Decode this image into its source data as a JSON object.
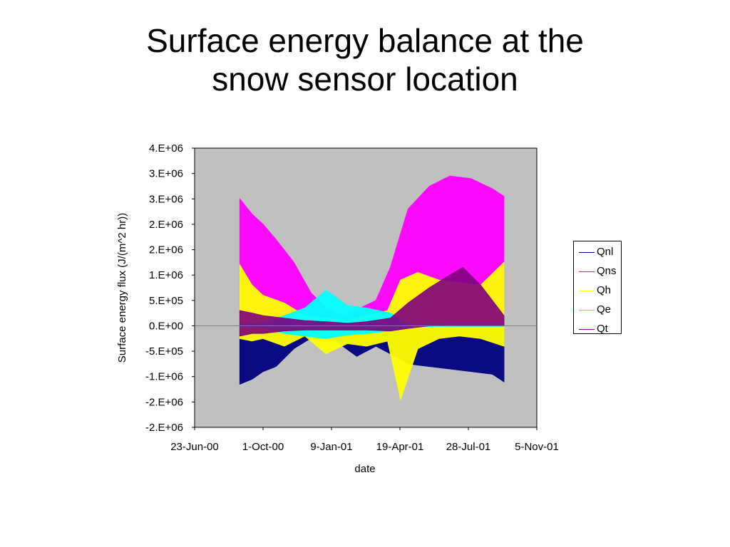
{
  "slide": {
    "title_line1": "Surface energy balance at the",
    "title_line2": "snow sensor location"
  },
  "chart_data": {
    "type": "line",
    "xlabel": "date",
    "ylabel": "Surface energy flux (J/(m^2 hr))",
    "x_tick_labels": [
      "23-Jun-00",
      "1-Oct-00",
      "9-Jan-01",
      "19-Apr-01",
      "28-Jul-01",
      "5-Nov-01"
    ],
    "x_ticks": [
      "2000-06-23",
      "2000-10-01",
      "2001-01-09",
      "2001-04-19",
      "2001-07-28",
      "2001-11-05"
    ],
    "y_tick_labels": [
      "4.E+06",
      "3.E+06",
      "3.E+06",
      "2.E+06",
      "2.E+06",
      "1.E+06",
      "5.E+05",
      "0.E+00",
      "-5.E+05",
      "-1.E+06",
      "-2.E+06",
      "-2.E+06"
    ],
    "y_ticks": [
      3500000,
      3000000,
      2500000,
      2000000,
      1500000,
      1000000,
      500000,
      0,
      -500000,
      -1000000,
      -1500000,
      -2000000
    ],
    "ylim": [
      -2000000,
      3500000
    ],
    "xlim": [
      "2000-06-23",
      "2001-11-05"
    ],
    "grid": "horizontal zero line only",
    "plot_background": "#c0c0c0",
    "legend_position": "right",
    "series": [
      {
        "name": "Qnl",
        "color": "#000080",
        "x": [
          "2000-08-28",
          "2000-09-15",
          "2000-10-01",
          "2000-10-20",
          "2000-11-15",
          "2000-12-15",
          "2001-01-15",
          "2001-02-15",
          "2001-03-15",
          "2001-04-05",
          "2001-05-01",
          "2001-06-01",
          "2001-07-01",
          "2001-08-01",
          "2001-09-01",
          "2001-09-18"
        ],
        "lower": [
          -1150000,
          -1050000,
          -900000,
          -800000,
          -450000,
          -200000,
          -300000,
          -600000,
          -400000,
          -550000,
          -750000,
          -800000,
          -850000,
          -900000,
          -950000,
          -1100000
        ],
        "upper": [
          -50000,
          -50000,
          -50000,
          -40000,
          -20000,
          -10000,
          -10000,
          -20000,
          -20000,
          -40000,
          -50000,
          -60000,
          -60000,
          -60000,
          -60000,
          -60000
        ]
      },
      {
        "name": "Qns",
        "color": "#ff00ff",
        "x": [
          "2000-08-28",
          "2000-09-15",
          "2000-10-01",
          "2000-10-20",
          "2000-11-15",
          "2000-12-10",
          "2001-01-01",
          "2001-01-25",
          "2001-02-20",
          "2001-03-15",
          "2001-04-05",
          "2001-05-01",
          "2001-06-01",
          "2001-07-01",
          "2001-08-01",
          "2001-09-01",
          "2001-09-18"
        ],
        "lower": [
          0,
          0,
          0,
          0,
          0,
          0,
          0,
          0,
          0,
          0,
          0,
          0,
          0,
          0,
          0,
          0,
          0
        ],
        "upper": [
          2500000,
          2200000,
          2000000,
          1700000,
          1250000,
          650000,
          350000,
          200000,
          350000,
          500000,
          1150000,
          2300000,
          2750000,
          2950000,
          2900000,
          2700000,
          2550000
        ]
      },
      {
        "name": "Qh",
        "color": "#ffff00",
        "x": [
          "2000-08-28",
          "2000-09-15",
          "2000-10-01",
          "2000-11-01",
          "2000-12-01",
          "2001-01-01",
          "2001-02-01",
          "2001-03-01",
          "2001-04-01",
          "2001-04-20",
          "2001-05-15",
          "2001-06-15",
          "2001-07-15",
          "2001-08-15",
          "2001-09-18"
        ],
        "lower": [
          -250000,
          -300000,
          -250000,
          -400000,
          -200000,
          -550000,
          -350000,
          -400000,
          -300000,
          -1450000,
          -450000,
          -250000,
          -200000,
          -250000,
          -400000
        ],
        "upper": [
          1200000,
          800000,
          600000,
          450000,
          200000,
          150000,
          100000,
          200000,
          300000,
          900000,
          1050000,
          900000,
          850000,
          800000,
          1250000
        ]
      },
      {
        "name": "Qe",
        "color": "#00ffff",
        "x": [
          "2000-08-28",
          "2000-10-01",
          "2000-11-01",
          "2000-12-01",
          "2001-01-01",
          "2001-02-01",
          "2001-03-01",
          "2001-04-05",
          "2001-05-01",
          "2001-07-01",
          "2001-09-18"
        ],
        "lower": [
          -20000,
          -30000,
          -150000,
          -200000,
          -250000,
          -180000,
          -150000,
          -100000,
          -20000,
          -10000,
          -10000
        ],
        "upper": [
          30000,
          50000,
          200000,
          350000,
          700000,
          400000,
          350000,
          250000,
          30000,
          20000,
          20000
        ]
      },
      {
        "name": "Qt",
        "color": "#800080",
        "x": [
          "2000-08-28",
          "2000-09-15",
          "2000-10-01",
          "2000-11-01",
          "2000-12-01",
          "2001-01-01",
          "2001-02-01",
          "2001-03-01",
          "2001-04-05",
          "2001-05-01",
          "2001-06-01",
          "2001-07-01",
          "2001-07-20",
          "2001-08-15",
          "2001-09-18"
        ],
        "lower": [
          -200000,
          -150000,
          -150000,
          -100000,
          -80000,
          -80000,
          -80000,
          -80000,
          -100000,
          -50000,
          0,
          0,
          0,
          0,
          0
        ],
        "upper": [
          300000,
          250000,
          200000,
          150000,
          100000,
          80000,
          50000,
          80000,
          150000,
          450000,
          750000,
          1000000,
          1150000,
          800000,
          200000
        ]
      }
    ]
  }
}
